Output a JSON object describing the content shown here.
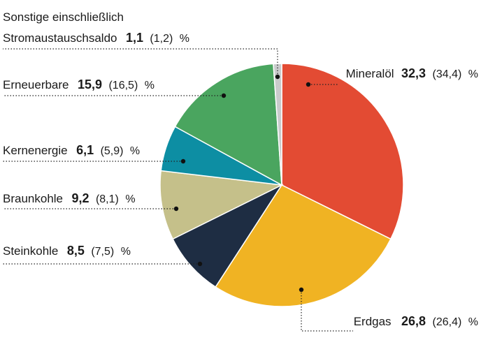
{
  "chart_data": {
    "type": "pie",
    "unit": "%",
    "slices": [
      {
        "key": "mineraloel",
        "label": "Mineralöl",
        "value": 32.3,
        "value_text": "32,3",
        "prev_text": "(34,4)",
        "color": "#e34b33"
      },
      {
        "key": "erdgas",
        "label": "Erdgas",
        "value": 26.8,
        "value_text": "26,8",
        "prev_text": "(26,4)",
        "color": "#f0b323"
      },
      {
        "key": "steinkohle",
        "label": "Steinkohle",
        "value": 8.5,
        "value_text": "8,5",
        "prev_text": "(7,5)",
        "color": "#1e2d43"
      },
      {
        "key": "braunkohle",
        "label": "Braunkohle",
        "value": 9.2,
        "value_text": "9,2",
        "prev_text": "(8,1)",
        "color": "#c5c08a"
      },
      {
        "key": "kernenergie",
        "label": "Kernenergie",
        "value": 6.1,
        "value_text": "6,1",
        "prev_text": "(5,9)",
        "color": "#0d8ea3"
      },
      {
        "key": "erneuerbare",
        "label": "Erneuerbare",
        "value": 15.9,
        "value_text": "15,9",
        "prev_text": "(16,5)",
        "color": "#4aa55f"
      },
      {
        "key": "sonstige",
        "label": "Sonstige einschließlich",
        "label_line2": "Stromaustauschsaldo",
        "value": 1.1,
        "value_text": "1,1",
        "prev_text": "(1,2)",
        "color": "#c9cbcc"
      }
    ]
  }
}
